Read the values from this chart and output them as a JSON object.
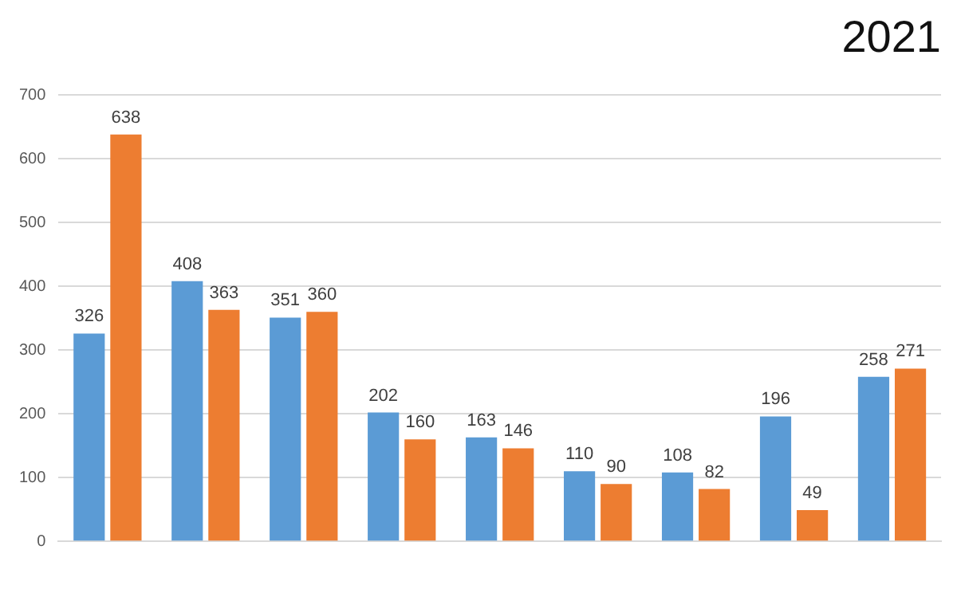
{
  "chart_data": {
    "type": "bar",
    "title": "2021",
    "categories": [
      null,
      null,
      null,
      null,
      null,
      null,
      null,
      null,
      null
    ],
    "series": [
      {
        "color": "#5b9bd5",
        "values": [
          326,
          408,
          351,
          202,
          163,
          110,
          108,
          196,
          258
        ]
      },
      {
        "color": "#ed7d31",
        "values": [
          638,
          363,
          360,
          160,
          146,
          90,
          82,
          49,
          271
        ]
      }
    ],
    "ylim": [
      0,
      700
    ],
    "yticks": [
      0,
      100,
      200,
      300,
      400,
      500,
      600,
      700
    ],
    "grid": "y",
    "data_labels": true,
    "legend": false
  }
}
